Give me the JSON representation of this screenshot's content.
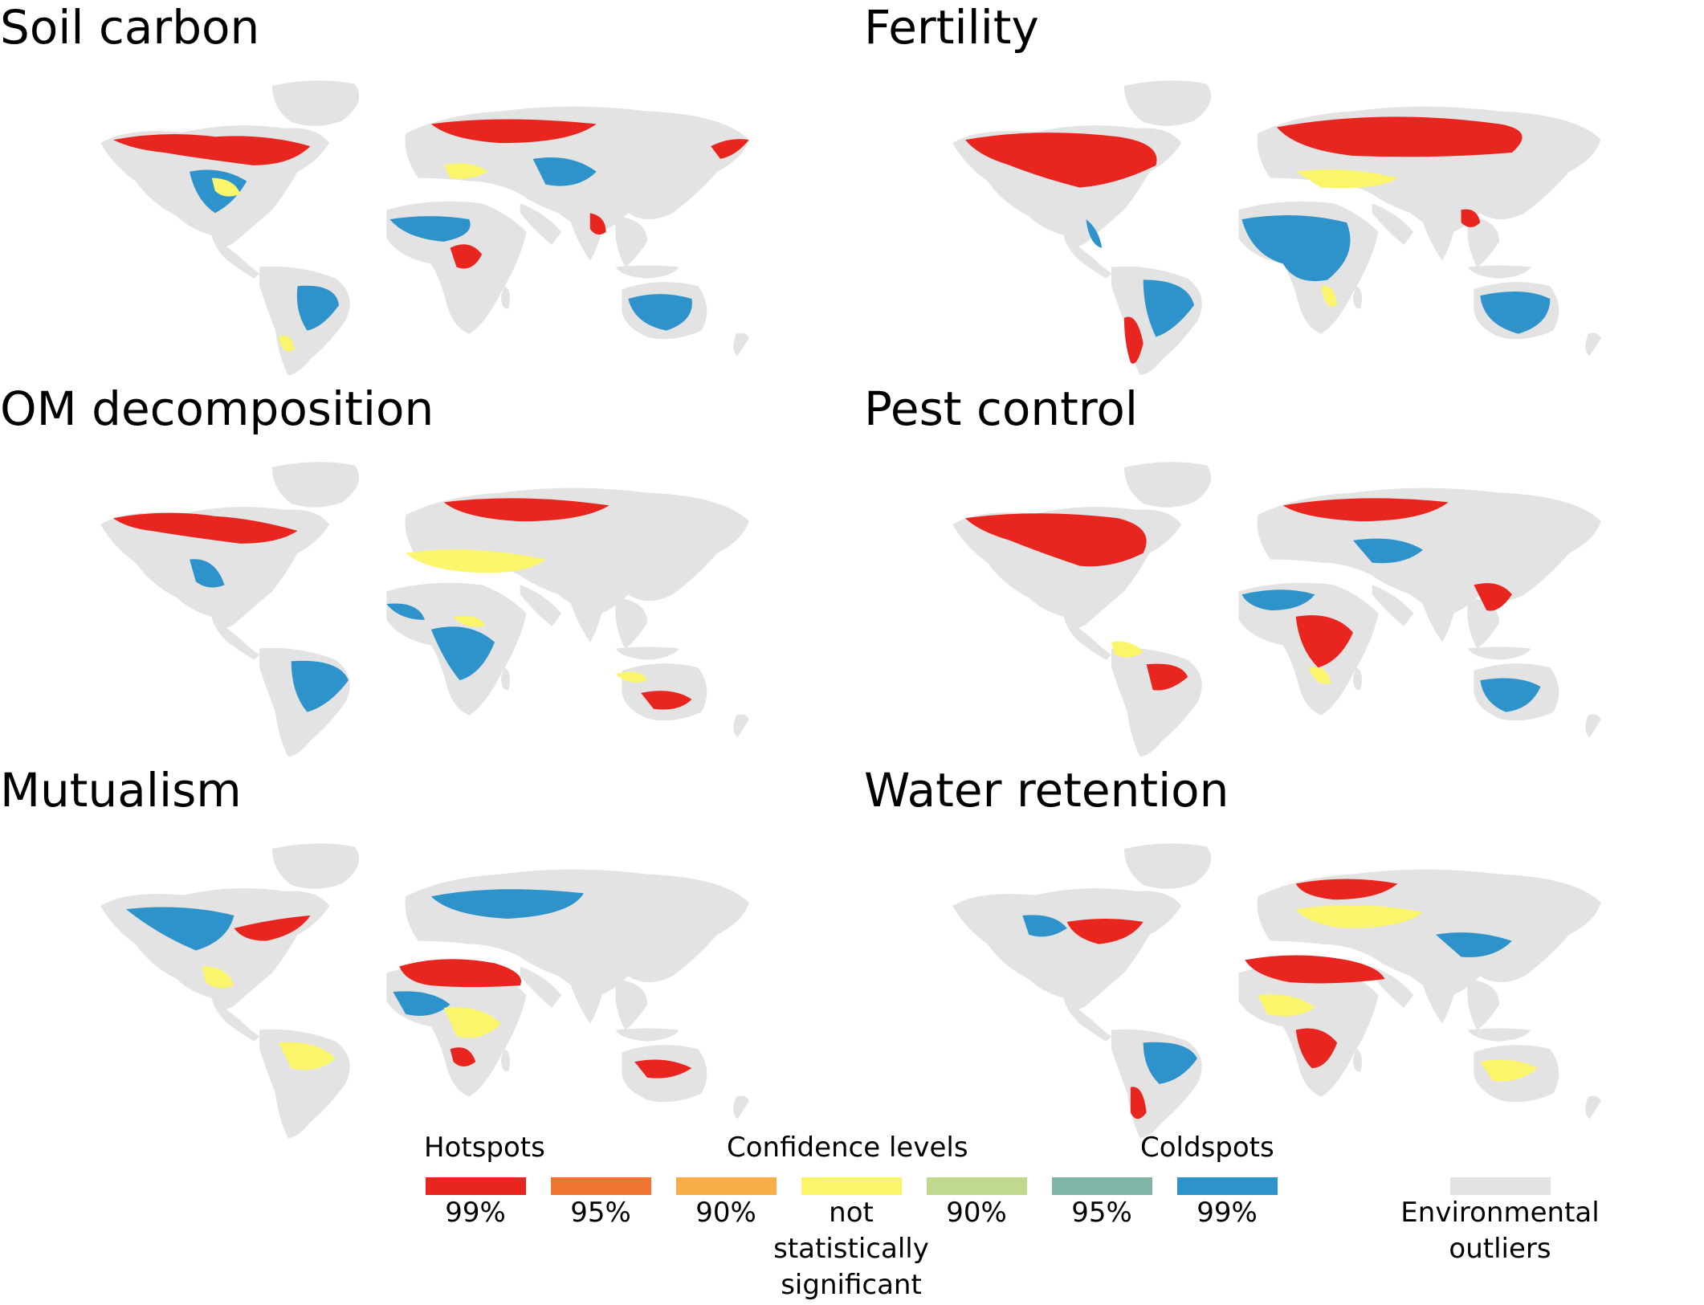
{
  "panels": [
    {
      "title": "Soil carbon"
    },
    {
      "title": "Fertility"
    },
    {
      "title": "OM decomposition"
    },
    {
      "title": "Pest control"
    },
    {
      "title": "Mutualism"
    },
    {
      "title": "Water retention"
    }
  ],
  "legend": {
    "hotspots_label": "Hotspots",
    "confidence_label": "Confidence levels",
    "coldspots_label": "Coldspots",
    "classes": [
      {
        "label": "99%",
        "color": "#e8251f"
      },
      {
        "label": "95%",
        "color": "#f07432"
      },
      {
        "label": "90%",
        "color": "#f8ad48"
      },
      {
        "label": "not statistically significant",
        "color": "#fbf56b"
      },
      {
        "label": "90%",
        "color": "#c1d98c"
      },
      {
        "label": "95%",
        "color": "#7fb4a7"
      },
      {
        "label": "99%",
        "color": "#2e93cb"
      }
    ],
    "outliers": {
      "label": "Environmental outliers",
      "color": "#e3e3e3"
    }
  }
}
